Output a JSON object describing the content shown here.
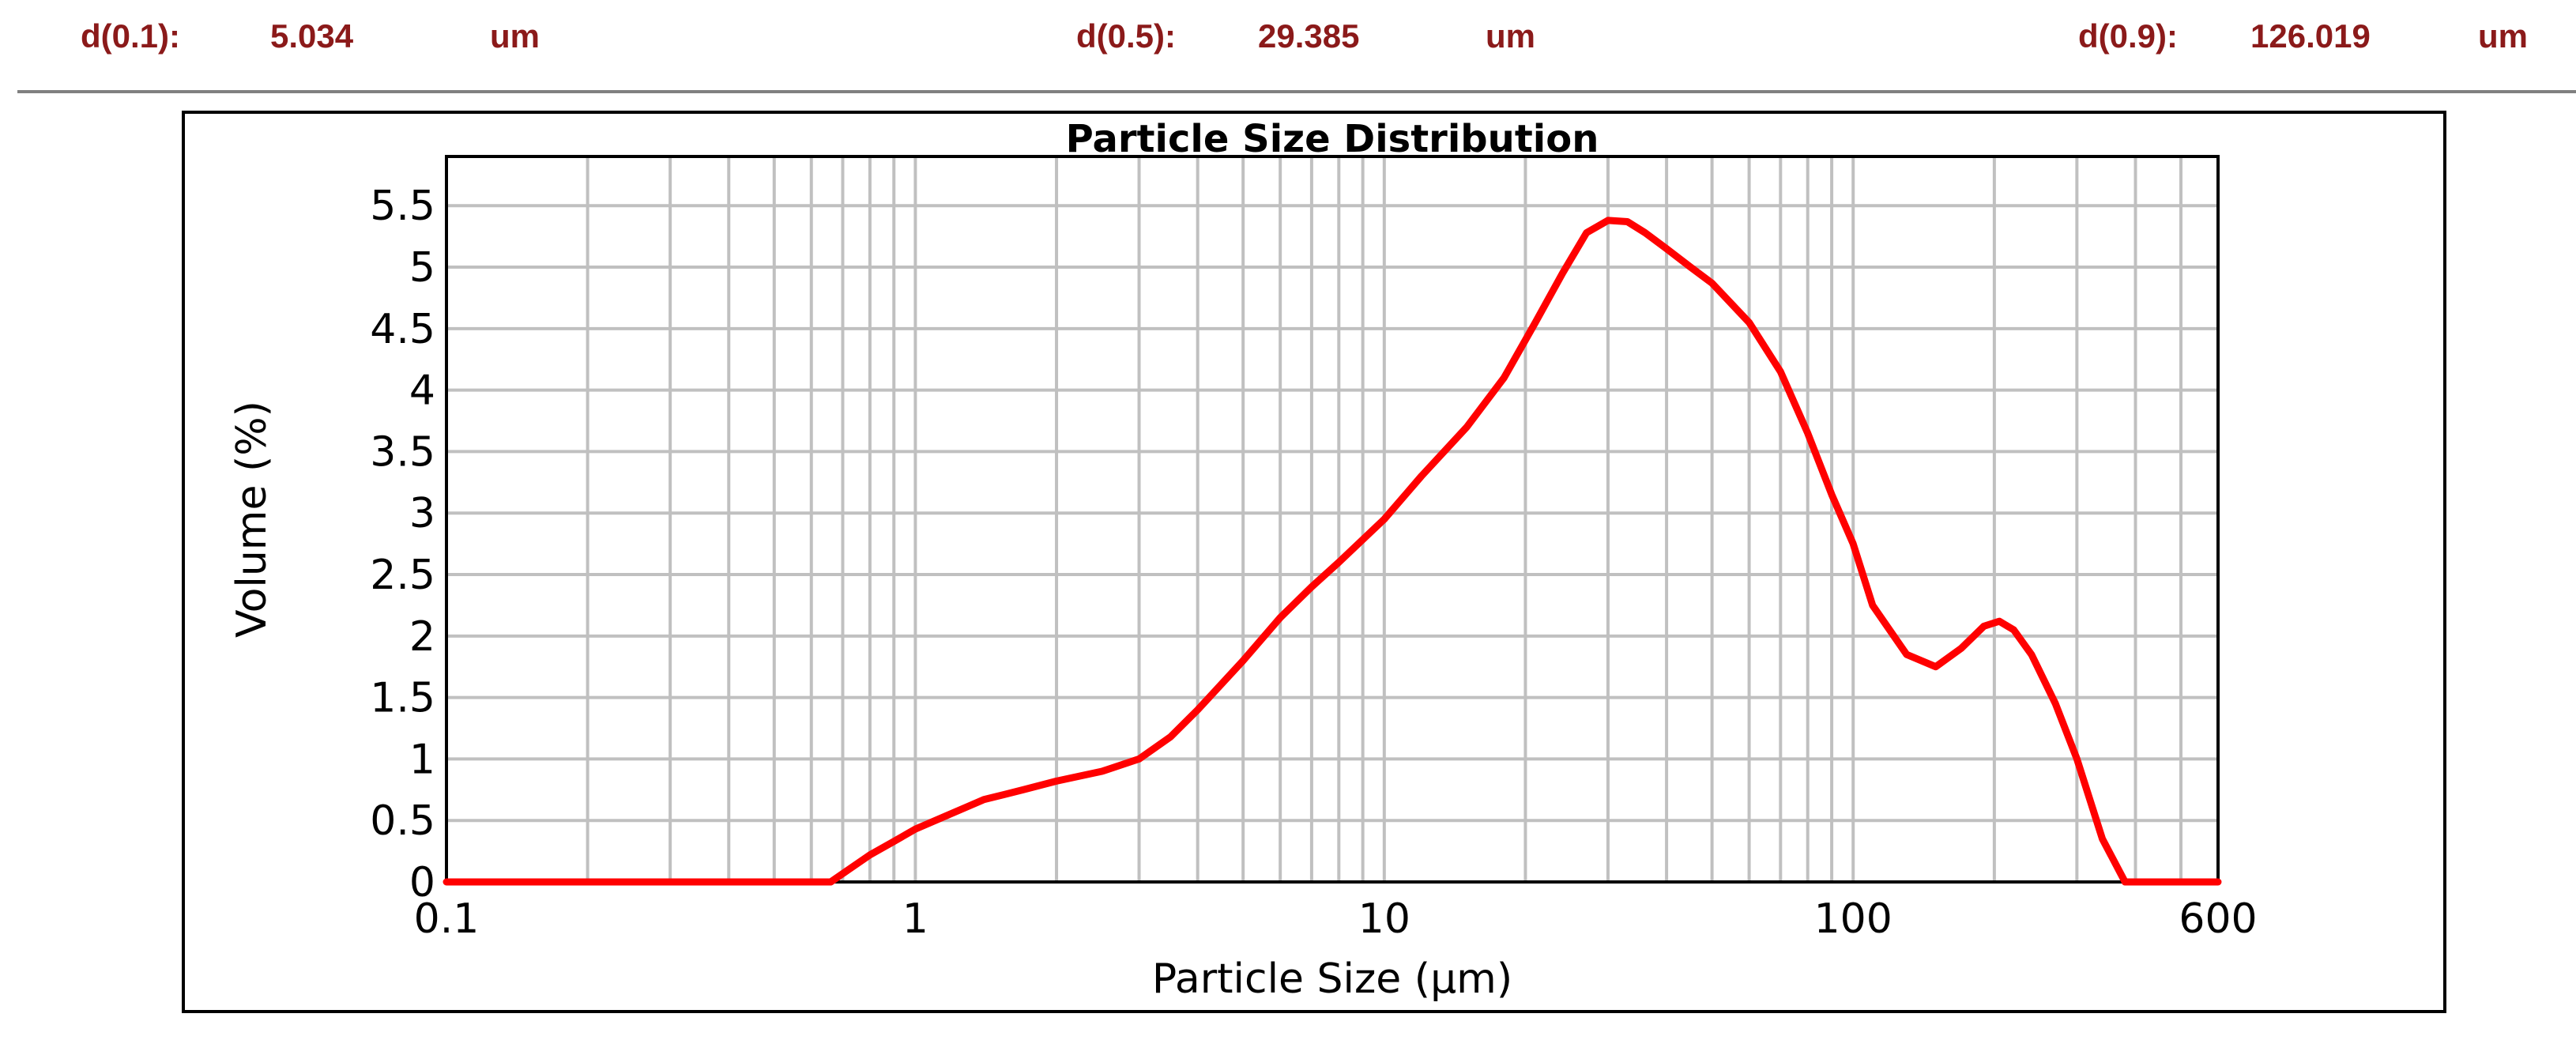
{
  "stats": {
    "d10": {
      "label": "d(0.1):",
      "value": "5.034",
      "unit": "um"
    },
    "d50": {
      "label": "d(0.5):",
      "value": "29.385",
      "unit": "um"
    },
    "d90": {
      "label": "d(0.9):",
      "value": "126.019",
      "unit": "um"
    }
  },
  "colors": {
    "stat_text": "#8b1a1a",
    "series": "#ff0000",
    "grid": "#c0c0c0",
    "rule": "#808080"
  },
  "chart_data": {
    "type": "line",
    "title": "Particle Size Distribution",
    "xlabel": "Particle Size (µm)",
    "ylabel": "Volume (%)",
    "xscale": "log",
    "xlim": [
      0.1,
      600
    ],
    "ylim": [
      0,
      5.9
    ],
    "xticks": [
      {
        "value": 0.1,
        "label": "0.1"
      },
      {
        "value": 1,
        "label": "1"
      },
      {
        "value": 10,
        "label": "10"
      },
      {
        "value": 100,
        "label": "100"
      },
      {
        "value": 600,
        "label": "600"
      }
    ],
    "yticks": [
      {
        "value": 0,
        "label": "0"
      },
      {
        "value": 0.5,
        "label": "0.5"
      },
      {
        "value": 1,
        "label": "1"
      },
      {
        "value": 1.5,
        "label": "1.5"
      },
      {
        "value": 2,
        "label": "2"
      },
      {
        "value": 2.5,
        "label": "2.5"
      },
      {
        "value": 3,
        "label": "3"
      },
      {
        "value": 3.5,
        "label": "3.5"
      },
      {
        "value": 4,
        "label": "4"
      },
      {
        "value": 4.5,
        "label": "4.5"
      },
      {
        "value": 5,
        "label": "5"
      },
      {
        "value": 5.5,
        "label": "5.5"
      }
    ],
    "grid": true,
    "legend": "none",
    "series": [
      {
        "color": "#ff0000",
        "x": [
          0.1,
          0.2,
          0.4,
          0.66,
          0.72,
          0.8,
          0.9,
          1.0,
          1.2,
          1.4,
          1.7,
          2.0,
          2.5,
          3.0,
          3.5,
          4.0,
          5.0,
          6.0,
          7.0,
          8.0,
          10,
          12,
          15,
          18,
          21,
          24,
          27,
          30,
          33,
          36,
          40,
          45,
          50,
          60,
          70,
          80,
          90,
          100,
          110,
          130,
          150,
          170,
          190,
          205,
          220,
          240,
          270,
          300,
          340,
          380,
          420,
          450,
          500,
          600
        ],
        "y": [
          0,
          0,
          0,
          0,
          0.1,
          0.22,
          0.33,
          0.43,
          0.56,
          0.67,
          0.75,
          0.82,
          0.9,
          1.0,
          1.18,
          1.4,
          1.8,
          2.15,
          2.4,
          2.6,
          2.95,
          3.3,
          3.7,
          4.1,
          4.55,
          4.95,
          5.28,
          5.38,
          5.37,
          5.28,
          5.15,
          5.0,
          4.87,
          4.55,
          4.15,
          3.65,
          3.15,
          2.75,
          2.25,
          1.85,
          1.75,
          1.9,
          2.08,
          2.12,
          2.05,
          1.85,
          1.45,
          1.0,
          0.35,
          0,
          0,
          0,
          0,
          0
        ]
      }
    ]
  }
}
